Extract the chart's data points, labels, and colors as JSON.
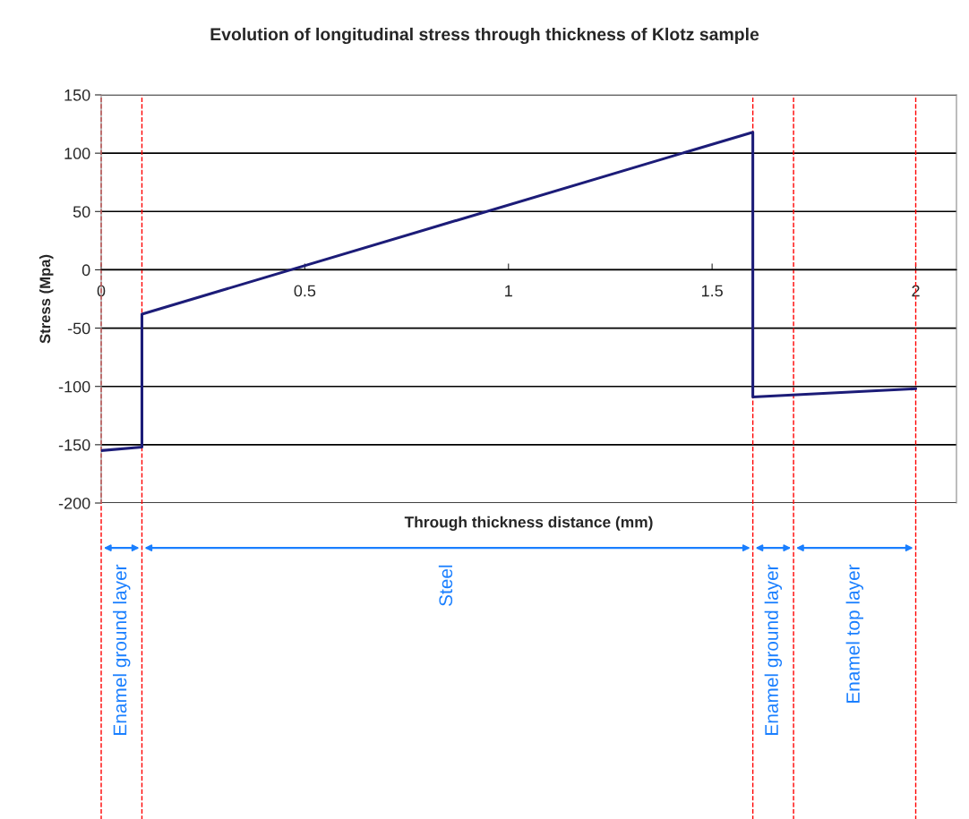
{
  "chart_data": {
    "type": "line",
    "title": "Evolution of longitudinal stress through thickness of Klotz sample",
    "xlabel": "Through thickness distance (mm)",
    "ylabel": "Stress (Mpa)",
    "series": [
      {
        "color": "#1c1c78",
        "x": [
          0,
          0.1,
          0.1,
          1.6,
          1.6,
          2.0
        ],
        "values": [
          -155,
          -152,
          -38,
          118,
          -109,
          -102
        ]
      }
    ],
    "xlim": [
      0,
      2.1
    ],
    "xticks": [
      0,
      0.5,
      1,
      1.5,
      2
    ],
    "ylim": [
      -200,
      150
    ],
    "yticks": [
      -200,
      -150,
      -100,
      -50,
      0,
      50,
      100,
      150
    ],
    "grid": "y",
    "legend": false,
    "marker": "none",
    "line_style": "solid",
    "ref_lines": [
      {
        "axis": "x",
        "value": 0,
        "color": "#ff0000",
        "line_style": "dashed"
      },
      {
        "axis": "x",
        "value": 0.1,
        "color": "#ff0000",
        "line_style": "dashed"
      },
      {
        "axis": "x",
        "value": 1.6,
        "color": "#ff0000",
        "line_style": "dashed"
      },
      {
        "axis": "x",
        "value": 1.7,
        "color": "#ff0000",
        "line_style": "dashed"
      },
      {
        "axis": "x",
        "value": 2.0,
        "color": "#ff0000",
        "line_style": "dashed"
      }
    ],
    "annotations": [
      "Enamel ground layer",
      "Steel",
      "Enamel ground layer",
      "Enamel top layer"
    ]
  }
}
